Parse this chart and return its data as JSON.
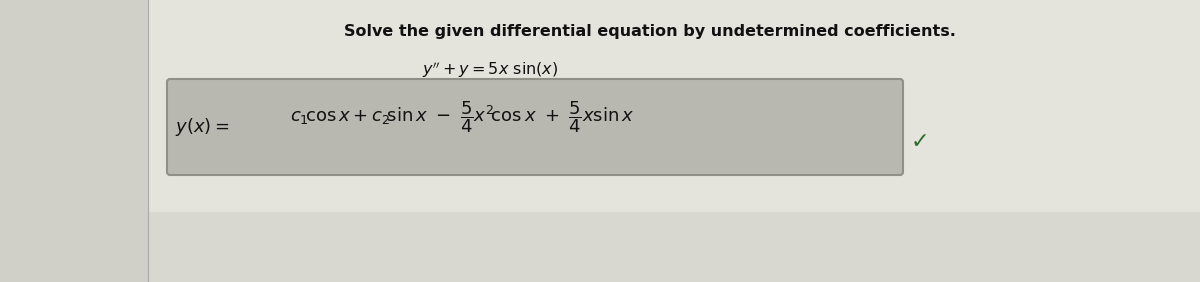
{
  "title_text": "Solve the given differential equation by undetermined coefficients.",
  "bg_color_left": "#dcdcd4",
  "bg_color_right": "#e8e8e0",
  "panel_color": "#e0e0d8",
  "box_facecolor": "#b8b8b0",
  "box_edgecolor": "#909088",
  "text_color": "#111111",
  "title_fontsize": 11.5,
  "eq_fontsize": 11.5,
  "sol_fontsize": 13,
  "checkmark_color": "#2a6e2a",
  "checkmark_fontsize": 16
}
